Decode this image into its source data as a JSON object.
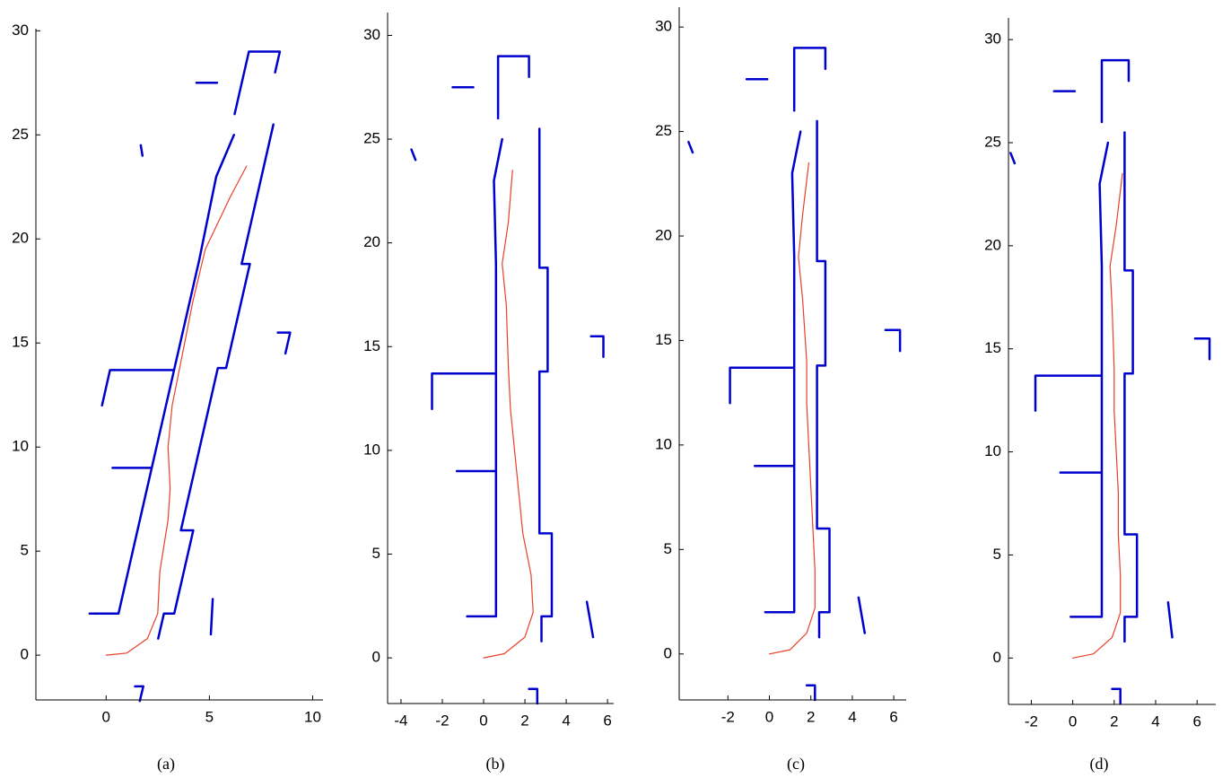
{
  "chart_data": [
    {
      "type": "line",
      "caption": "(a)",
      "xlim": [
        -3.4,
        10.5
      ],
      "ylim": [
        -2.15,
        30.1
      ],
      "xticks": [
        0,
        5,
        10
      ],
      "yticks": [
        0,
        5,
        10,
        15,
        20,
        25,
        30
      ],
      "series": [
        {
          "color": "#0000cc",
          "line_width": 2.5,
          "x": [
            0.6,
            3.29,
            4.51,
            5.33,
            6.19,
            null,
            -0.8,
            0.6,
            null,
            -0.2,
            0.19,
            3.29,
            null,
            0.31,
            2.21,
            null,
            1.63,
            1.8,
            1.4,
            null,
            2.52,
            2.8,
            3.3,
            4.22,
            3.62,
            5.41,
            5.81,
            6.96,
            6.56,
            8.1,
            null,
            6.22,
            6.91,
            8.41,
            8.18,
            null,
            4.37,
            5.37,
            null,
            1.76,
            1.68,
            null,
            8.31,
            8.91,
            8.68,
            null,
            5.16,
            5.07
          ],
          "values": [
            2,
            13.7,
            19,
            23,
            25,
            null,
            2,
            2,
            null,
            12,
            13.7,
            13.7,
            null,
            9,
            9,
            null,
            -2.2,
            -1.5,
            -1.5,
            null,
            0.8,
            2,
            2,
            6,
            6,
            13.8,
            13.8,
            18.8,
            18.8,
            25.5,
            null,
            26,
            29,
            29,
            28,
            null,
            27.5,
            27.5,
            null,
            24,
            24.5,
            null,
            15.5,
            15.5,
            14.5,
            null,
            2.7,
            1
          ]
        },
        {
          "color": "#e8402a",
          "line_width": 1.2,
          "x": [
            0,
            1,
            2,
            2.5,
            2.6,
            3,
            3.1,
            3,
            3.2,
            3.6,
            4.2,
            4.8,
            6,
            6.8
          ],
          "values": [
            0,
            0.1,
            0.8,
            2,
            4,
            6.5,
            8,
            10,
            12,
            14,
            17,
            19.5,
            22,
            23.5
          ]
        }
      ]
    },
    {
      "type": "line",
      "caption": "(b)",
      "xlim": [
        -4.65,
        6.3
      ],
      "ylim": [
        -2.2,
        31.1
      ],
      "xticks": [
        -4,
        -2,
        0,
        2,
        4,
        6
      ],
      "yticks": [
        0,
        5,
        10,
        15,
        20,
        25,
        30
      ],
      "series": [
        {
          "color": "#0000cc",
          "line_width": 2.5,
          "x": [
            0.6,
            0.6,
            0.6,
            0.5,
            0.9,
            null,
            -0.8,
            0.6,
            null,
            -2.5,
            -2.5,
            0.6,
            null,
            -1.3,
            0.6,
            null,
            2.6,
            2.6,
            2.2,
            null,
            2.8,
            2.8,
            3.3,
            3.3,
            2.7,
            2.7,
            3.1,
            3.1,
            2.7,
            2.7,
            null,
            0.7,
            0.7,
            2.2,
            2.2,
            null,
            -1.5,
            -0.5,
            null,
            -3.3,
            -3.5,
            null,
            5.2,
            5.8,
            5.8,
            null,
            5,
            5.3
          ],
          "values": [
            2,
            13.7,
            19,
            23,
            25,
            null,
            2,
            2,
            null,
            12,
            13.7,
            13.7,
            null,
            9,
            9,
            null,
            -2.2,
            -1.5,
            -1.5,
            null,
            0.8,
            2,
            2,
            6,
            6,
            13.8,
            13.8,
            18.8,
            18.8,
            25.5,
            null,
            26,
            29,
            29,
            28,
            null,
            27.5,
            27.5,
            null,
            24,
            24.5,
            null,
            15.5,
            15.5,
            14.5,
            null,
            2.7,
            1
          ]
        },
        {
          "color": "#e8402a",
          "line_width": 1.2,
          "x": [
            0,
            1,
            2,
            2.4,
            2.3,
            1.9,
            1.7,
            1.5,
            1.3,
            1.2,
            1.1,
            0.9,
            1.2,
            1.4
          ],
          "values": [
            0,
            0.2,
            1,
            2.2,
            4,
            6,
            8,
            10,
            12,
            14,
            17,
            19,
            21,
            23.5
          ]
        }
      ]
    },
    {
      "type": "line",
      "caption": "(c)",
      "xlim": [
        -4.35,
        6.6
      ],
      "ylim": [
        -2.2,
        30.95
      ],
      "xticks": [
        -2,
        0,
        2,
        4,
        6
      ],
      "yticks": [
        0,
        5,
        10,
        15,
        20,
        25,
        30
      ],
      "series": [
        {
          "color": "#0000cc",
          "line_width": 2.5,
          "x": [
            1.2,
            1.2,
            1.2,
            1.1,
            1.5,
            null,
            -0.2,
            1.2,
            null,
            -1.9,
            -1.9,
            1.2,
            null,
            -0.7,
            1.2,
            null,
            2.2,
            2.2,
            1.8,
            null,
            2.4,
            2.4,
            2.9,
            2.9,
            2.3,
            2.3,
            2.7,
            2.7,
            2.3,
            2.3,
            null,
            1.2,
            1.2,
            2.7,
            2.7,
            null,
            -1.1,
            -0.1,
            null,
            -3.7,
            -3.9,
            null,
            5.6,
            6.3,
            6.3,
            null,
            4.3,
            4.6
          ],
          "values": [
            2,
            13.7,
            19,
            23,
            25,
            null,
            2,
            2,
            null,
            12,
            13.7,
            13.7,
            null,
            9,
            9,
            null,
            -2.2,
            -1.5,
            -1.5,
            null,
            0.8,
            2,
            2,
            6,
            6,
            13.8,
            13.8,
            18.8,
            18.8,
            25.5,
            null,
            26,
            29,
            29,
            28,
            null,
            27.5,
            27.5,
            null,
            24,
            24.5,
            null,
            15.5,
            15.5,
            14.5,
            null,
            2.7,
            1
          ]
        },
        {
          "color": "#e8402a",
          "line_width": 1.2,
          "x": [
            0,
            1,
            1.8,
            2.2,
            2.2,
            2.1,
            2,
            1.9,
            1.8,
            1.8,
            1.6,
            1.4,
            1.6,
            1.9
          ],
          "values": [
            0,
            0.2,
            1,
            2.2,
            4,
            6,
            8,
            10,
            12,
            14,
            17,
            19,
            21,
            23.5
          ]
        }
      ]
    },
    {
      "type": "line",
      "caption": "(d)",
      "xlim": [
        -3.1,
        6.9
      ],
      "ylim": [
        -2.25,
        31.05
      ],
      "xticks": [
        -2,
        0,
        2,
        4,
        6
      ],
      "yticks": [
        0,
        5,
        10,
        15,
        20,
        25,
        30
      ],
      "series": [
        {
          "color": "#0000cc",
          "line_width": 2.5,
          "x": [
            1.4,
            1.4,
            1.4,
            1.3,
            1.7,
            null,
            -0.1,
            1.4,
            null,
            -1.8,
            -1.8,
            1.4,
            null,
            -0.6,
            1.4,
            null,
            2.3,
            2.3,
            1.9,
            null,
            2.5,
            2.5,
            3.1,
            3.1,
            2.5,
            2.5,
            2.9,
            2.9,
            2.5,
            2.5,
            null,
            1.4,
            1.4,
            2.7,
            2.7,
            null,
            -0.9,
            0.1,
            null,
            -2.8,
            -3,
            null,
            5.9,
            6.6,
            6.6,
            null,
            4.6,
            4.8
          ],
          "values": [
            2,
            13.7,
            19,
            23,
            25,
            null,
            2,
            2,
            null,
            12,
            13.7,
            13.7,
            null,
            9,
            9,
            null,
            -2.2,
            -1.5,
            -1.5,
            null,
            0.8,
            2,
            2,
            6,
            6,
            13.8,
            13.8,
            18.8,
            18.8,
            25.5,
            null,
            26,
            29,
            29,
            28,
            null,
            27.5,
            27.5,
            null,
            24,
            24.5,
            null,
            15.5,
            15.5,
            14.5,
            null,
            2.7,
            1
          ]
        },
        {
          "color": "#e8402a",
          "line_width": 1.2,
          "x": [
            0,
            1,
            1.9,
            2.3,
            2.3,
            2.2,
            2.2,
            2.1,
            2,
            2,
            1.9,
            1.8,
            2.1,
            2.4
          ],
          "values": [
            0,
            0.2,
            1,
            2.2,
            4,
            6,
            8,
            10,
            12,
            14,
            17,
            19,
            21,
            23.5
          ]
        }
      ]
    }
  ]
}
